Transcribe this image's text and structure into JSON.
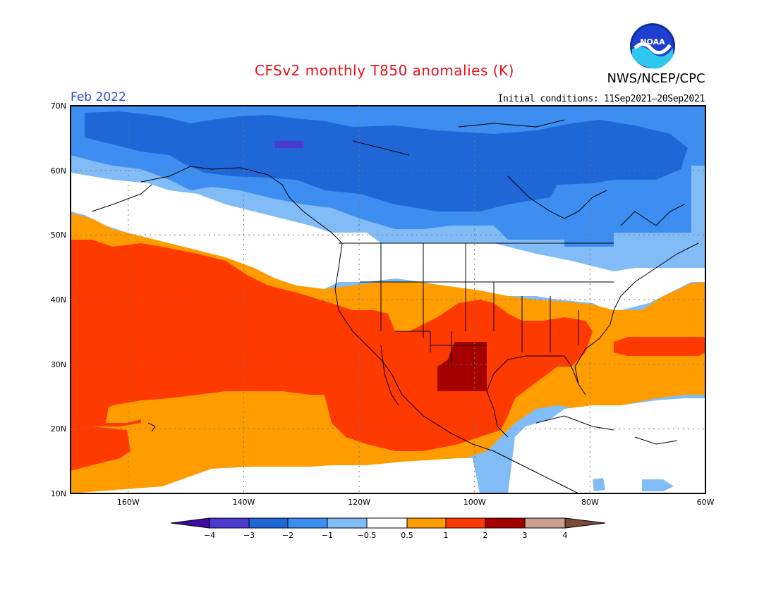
{
  "title": "CFSv2 monthly T850 anomalies (K)",
  "agency": "NWS/NCEP/CPC",
  "logo_text": "NOAA",
  "valid_month": "Feb 2022",
  "initial_conditions": "Initial conditions: 11Sep2021—20Sep2021",
  "map": {
    "lon_range": [
      -170,
      -60
    ],
    "lat_range": [
      10,
      70
    ],
    "lat_labels": [
      "70N",
      "60N",
      "50N",
      "40N",
      "30N",
      "20N",
      "10N"
    ],
    "lon_labels": [
      "160W",
      "140W",
      "120W",
      "100W",
      "80W",
      "60W"
    ]
  },
  "colorbar": {
    "labels": [
      "−4",
      "−3",
      "−2",
      "−1",
      "−0.5",
      "0.5",
      "1",
      "2",
      "3",
      "4"
    ],
    "colors": [
      "#3c0fa0",
      "#4b3ad0",
      "#1f66d6",
      "#3d8ef0",
      "#82bcf6",
      "#ffffff",
      "#ff9d00",
      "#ff3a00",
      "#a50000",
      "#c8a090",
      "#7b4a3a"
    ]
  },
  "colors": {
    "title": "#e8101a",
    "month": "#2b4fd6",
    "neg3": "#1f66d6",
    "neg2": "#3d8ef0",
    "neg1": "#82bcf6",
    "neg4": "#4b3ad0",
    "zero": "#ffffff",
    "pos05": "#ff9d00",
    "pos1": "#ff3a00",
    "pos2": "#a50000"
  }
}
